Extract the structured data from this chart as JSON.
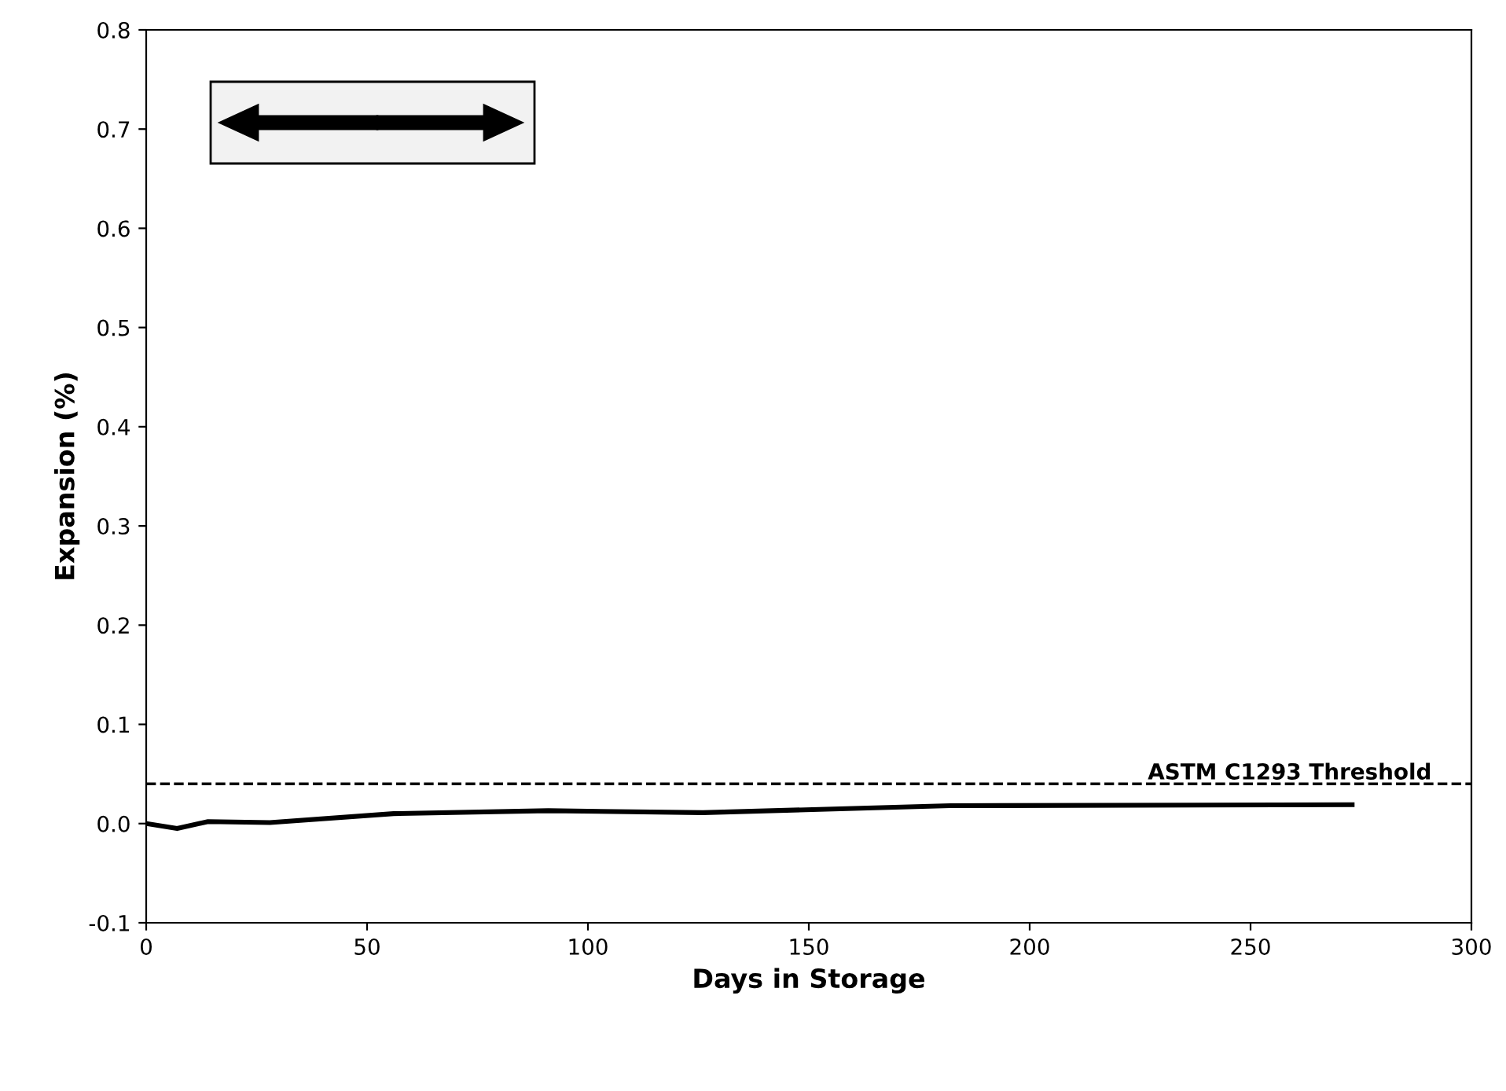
{
  "chart_data": {
    "type": "line",
    "xlabel": "Days in Storage",
    "ylabel": "Expansion (%)",
    "x": [
      0,
      7,
      14,
      28,
      56,
      91,
      126,
      182,
      273
    ],
    "series": [
      {
        "color": "#000000",
        "values": [
          0.0,
          -0.005,
          0.002,
          0.001,
          0.01,
          0.013,
          0.011,
          0.018,
          0.019
        ]
      }
    ],
    "xlim": [
      0,
      300
    ],
    "xticks": [
      0,
      50,
      100,
      150,
      200,
      250,
      300
    ],
    "ylim": [
      -0.1,
      0.8
    ],
    "yticks": [
      -0.1,
      {
        "value": 0,
        "label": "0.0"
      },
      0.1,
      0.2,
      0.3,
      0.4,
      0.5,
      0.6,
      0.7,
      0.8
    ],
    "ref_lines": [
      {
        "axis": "y",
        "value": 0.04,
        "label": "ASTM C1293 Threshold",
        "color": "#000000",
        "line_style": "dashed"
      }
    ],
    "grid": false,
    "legend": false,
    "marker": "none",
    "line_style": "solid"
  }
}
